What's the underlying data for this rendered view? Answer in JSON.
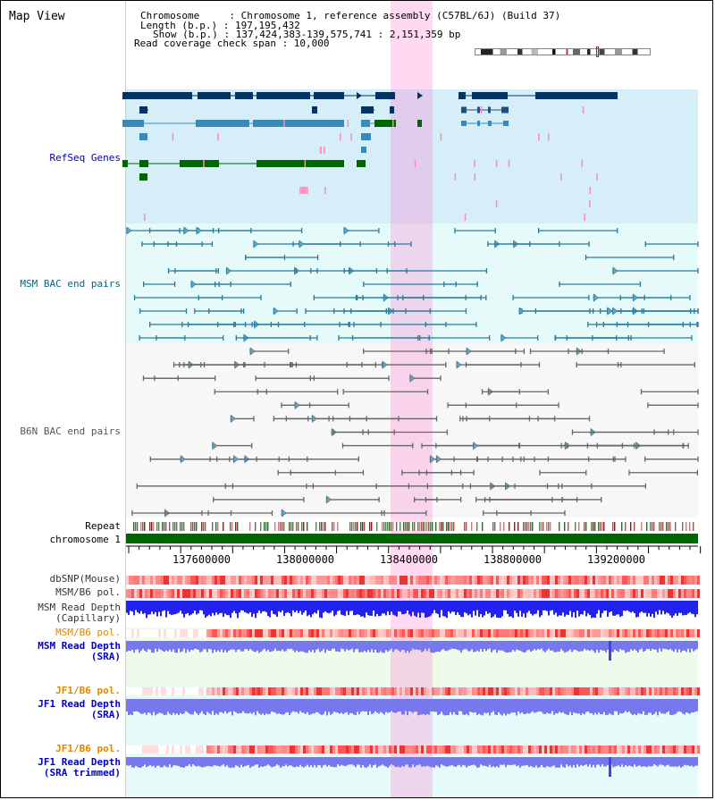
{
  "title": "Map View",
  "info": {
    "chromosome": "Chromosome     : Chromosome 1, reference assembly (C57BL/6J) (Build 37)",
    "length": "Length (b.p.) : 197,195,432",
    "show": "Show (b.p.) : 137,424,383-139,575,741 : 2,151,359 bp",
    "coverage": "Read coverage check span : 10,000"
  },
  "tracks": {
    "refseq": "RefSeq Genes",
    "msm_bac": "MSM BAC end pairs",
    "b6n_bac": "B6N BAC end pairs",
    "repeat": "Repeat",
    "chromosome": "chromosome 1",
    "dbsnp": "dbSNP(Mouse)",
    "msm_pol": "MSM/B6 pol.",
    "msm_depth_cap_1": "MSM Read Depth",
    "msm_depth_cap_2": "(Capillary)",
    "msm_pol2": "MSM/B6 pol.",
    "msm_depth_sra_1": "MSM Read Depth",
    "msm_depth_sra_2": "(SRA)",
    "jf1_pol": "JF1/B6 pol.",
    "jf1_depth_1": "JF1 Read Depth",
    "jf1_depth_2": "(SRA)",
    "jf1_pol2": "JF1/B6 pol.",
    "jf1_trim_1": "JF1 Read Depth",
    "jf1_trim_2": "(SRA trimmed)"
  },
  "axis": {
    "ticks": [
      "137600000",
      "138000000",
      "138400000",
      "138800000",
      "139200000"
    ]
  },
  "colors": {
    "refseq_bg": "#d6eef8",
    "msm_bg": "#e6fafa",
    "b6n_bg": "#f8f8f8",
    "highlight": "#ffd0f0",
    "gene_dark": "#003366",
    "gene_mid": "#3a8ab8",
    "gene_green": "#006600",
    "msm_line": "#2a7a9a",
    "b6n_line": "#666666",
    "chrom": "#006600",
    "depth_blue": "#2222ee",
    "depth_light": "#7777ee",
    "label_blue": "#0000cc",
    "label_orange": "#dd8800",
    "label_teal": "#006688"
  }
}
